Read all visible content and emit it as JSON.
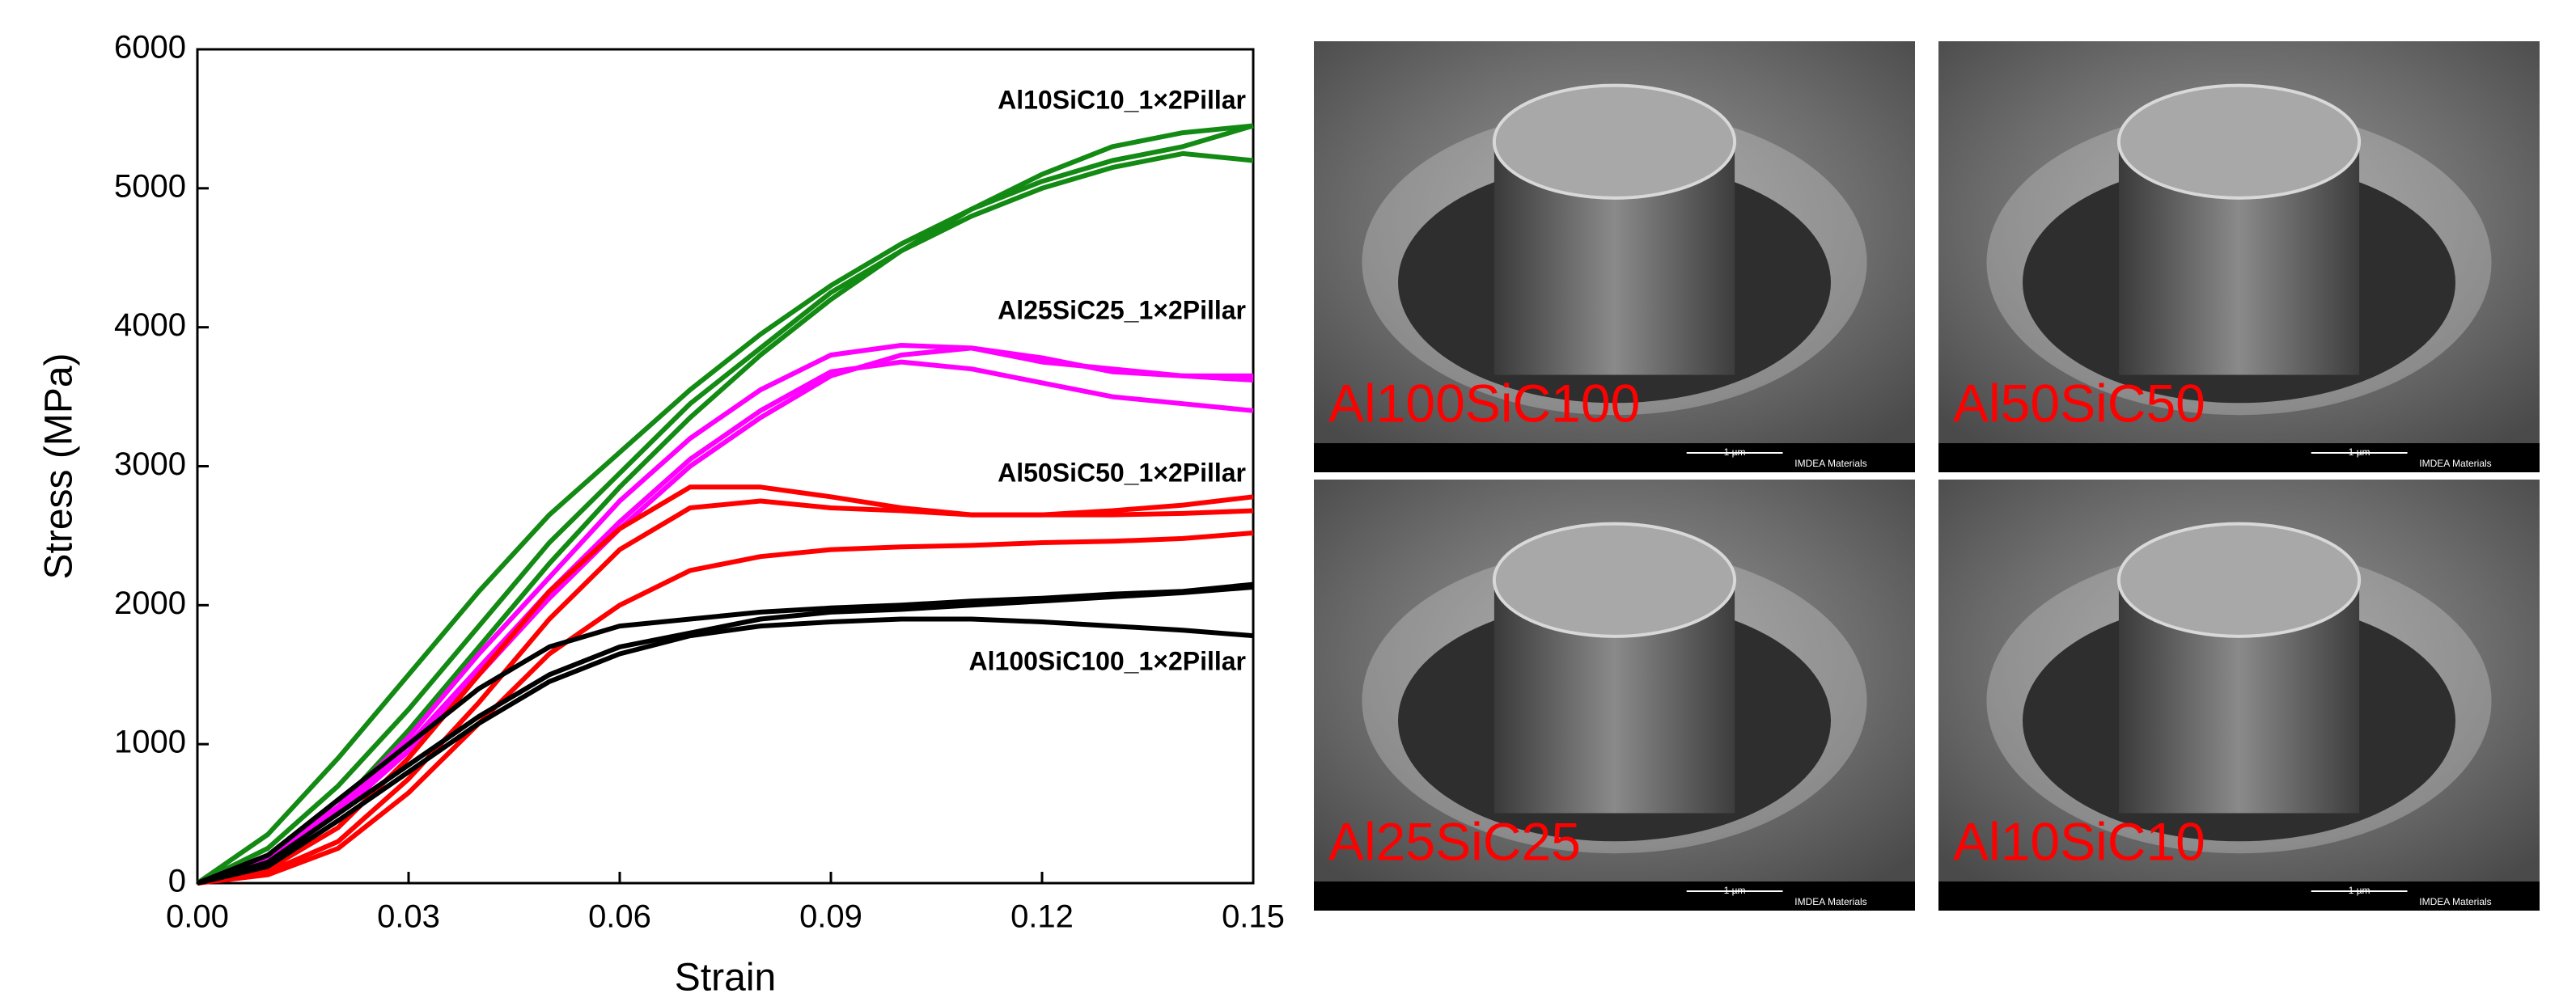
{
  "chart_data": {
    "type": "line",
    "x_label": "Strain",
    "y_label": "Stress (MPa)",
    "x": [
      0,
      0.01,
      0.02,
      0.03,
      0.04,
      0.05,
      0.06,
      0.07,
      0.08,
      0.09,
      0.1,
      0.11,
      0.12,
      0.13,
      0.14,
      0.15
    ],
    "xlim": [
      0,
      0.15
    ],
    "xticks": [
      {
        "value": 0,
        "label": "0.00"
      },
      0.03,
      0.06,
      0.09,
      0.12,
      0.15
    ],
    "ylim": [
      0,
      6000
    ],
    "yticks": [
      0,
      1000,
      2000,
      3000,
      4000,
      5000,
      6000
    ],
    "series": [
      {
        "name": "Al10SiC10_1×2Pillar",
        "color": "#138a13",
        "curves": [
          [
            0,
            350,
            900,
            1500,
            2100,
            2650,
            3100,
            3550,
            3950,
            4300,
            4600,
            4850,
            5050,
            5200,
            5300,
            5450
          ],
          [
            0,
            250,
            700,
            1250,
            1850,
            2450,
            2950,
            3450,
            3850,
            4250,
            4550,
            4800,
            5000,
            5150,
            5250,
            5200
          ],
          [
            0,
            200,
            550,
            1100,
            1700,
            2300,
            2850,
            3350,
            3800,
            4200,
            4550,
            4850,
            5100,
            5300,
            5400,
            5450
          ]
        ]
      },
      {
        "name": "Al25SiC25_1×2Pillar",
        "color": "#ff00ff",
        "curves": [
          [
            0,
            200,
            550,
            1050,
            1650,
            2200,
            2750,
            3200,
            3550,
            3800,
            3870,
            3850,
            3750,
            3700,
            3650,
            3620
          ],
          [
            0,
            150,
            500,
            950,
            1500,
            2050,
            2550,
            3000,
            3350,
            3650,
            3800,
            3850,
            3780,
            3680,
            3650,
            3650
          ],
          [
            0,
            180,
            520,
            1000,
            1550,
            2100,
            2600,
            3050,
            3400,
            3680,
            3750,
            3700,
            3600,
            3500,
            3450,
            3400
          ]
        ]
      },
      {
        "name": "Al50SiC50_1×2Pillar",
        "color": "#ff0000",
        "curves": [
          [
            0,
            100,
            400,
            900,
            1500,
            2100,
            2550,
            2850,
            2850,
            2780,
            2700,
            2650,
            2650,
            2680,
            2720,
            2780
          ],
          [
            0,
            80,
            300,
            750,
            1300,
            1900,
            2400,
            2700,
            2750,
            2700,
            2680,
            2650,
            2650,
            2650,
            2660,
            2680
          ],
          [
            0,
            60,
            250,
            650,
            1150,
            1650,
            2000,
            2250,
            2350,
            2400,
            2420,
            2430,
            2450,
            2460,
            2480,
            2520
          ]
        ]
      },
      {
        "name": "Al100SiC100_1×2Pillar",
        "color": "#000000",
        "curves": [
          [
            0,
            200,
            600,
            1000,
            1400,
            1700,
            1850,
            1900,
            1950,
            1980,
            2000,
            2030,
            2050,
            2080,
            2100,
            2150
          ],
          [
            0,
            150,
            500,
            850,
            1200,
            1500,
            1700,
            1800,
            1900,
            1950,
            1970,
            2000,
            2030,
            2060,
            2090,
            2130
          ],
          [
            0,
            120,
            450,
            800,
            1150,
            1450,
            1650,
            1780,
            1850,
            1880,
            1900,
            1900,
            1880,
            1850,
            1820,
            1780
          ]
        ]
      }
    ]
  },
  "panels": [
    {
      "label": "Al100SiC100",
      "scale_bar": "1 µm",
      "footer": "IMDEA Materials"
    },
    {
      "label": "Al50SiC50",
      "scale_bar": "1 µm",
      "footer": "IMDEA Materials"
    },
    {
      "label": "Al25SiC25",
      "scale_bar": "1 µm",
      "footer": "IMDEA Materials"
    },
    {
      "label": "Al10SiC10",
      "scale_bar": "1 µm",
      "footer": "IMDEA Materials"
    }
  ]
}
